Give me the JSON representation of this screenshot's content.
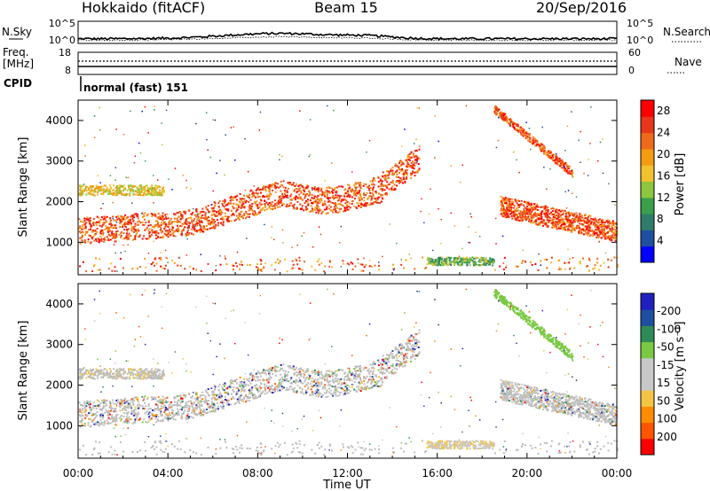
{
  "header": {
    "station": "Hokkaido (fitACF)",
    "beam": "Beam 15",
    "date": "20/Sep/2016"
  },
  "noise_panel": {
    "left_label": "N.Sky",
    "right_label": "N.Search",
    "ticks": [
      "10^5",
      "10^0"
    ]
  },
  "freq_panel": {
    "left_label_1": "Freq.",
    "left_label_2": "[MHz]",
    "left_ticks": [
      "18",
      "8"
    ],
    "right_label": "Nave",
    "right_ticks": [
      "60",
      "0"
    ]
  },
  "cpid_panel": {
    "label": "CPID",
    "mode": "normal (fast) 151"
  },
  "colors": {
    "power_scale": [
      "#0000ff",
      "#1e4fa0",
      "#2e7d6b",
      "#3a9e4a",
      "#8cc63f",
      "#f2c12e",
      "#f39c12",
      "#ee6a1a",
      "#e8361a",
      "#ff0000"
    ],
    "velocity_scale": [
      "#ff0000",
      "#ff5500",
      "#ff8c00",
      "#f4c542",
      "#c8c8c8",
      "#c8c8c8",
      "#7ac943",
      "#2e8b57",
      "#1e4fa0",
      "#2020c0"
    ],
    "ground_scatter": "#bdbdbd"
  },
  "chart_data": [
    {
      "type": "heatmap",
      "name": "power",
      "ylabel": "Slant Range [km]",
      "y_ticks": [
        "1000",
        "2000",
        "3000",
        "4000"
      ],
      "ylim": [
        200,
        4500
      ],
      "xlim_hours": [
        0,
        24
      ],
      "colorbar": {
        "label": "Power [dB]",
        "ticks": [
          "4",
          "8",
          "12",
          "16",
          "20",
          "24",
          "28"
        ],
        "range": [
          0,
          30
        ]
      },
      "echo_bands": [
        {
          "region": "main",
          "hours": [
            0,
            15.2
          ],
          "range_km_start": [
            1250,
            2700
          ],
          "color_level": 0.85
        },
        {
          "region": "upper",
          "hours": [
            0,
            3.5
          ],
          "range_km_start": [
            2300,
            2300
          ],
          "color_level": 0.6
        },
        {
          "region": "late",
          "hours": [
            18.8,
            24
          ],
          "range_km_start": [
            1900,
            1200
          ],
          "color_level": 0.85
        },
        {
          "region": "late-upper",
          "hours": [
            18.5,
            22
          ],
          "range_km_start": [
            4300,
            2700
          ],
          "color_level": 0.75
        },
        {
          "region": "near",
          "hours": [
            15.5,
            18.5
          ],
          "range_km_start": [
            500,
            500
          ],
          "color_level": 0.4
        }
      ]
    },
    {
      "type": "heatmap",
      "name": "velocity",
      "ylabel": "Slant Range [km]",
      "y_ticks": [
        "1000",
        "2000",
        "3000",
        "4000"
      ],
      "ylim": [
        200,
        4500
      ],
      "xlim_hours": [
        0,
        24
      ],
      "colorbar": {
        "label": "Velocity [m s⁻¹]",
        "ticks": [
          "200",
          "100",
          "50",
          "15",
          "-15",
          "-50",
          "-100",
          "-200"
        ],
        "range": [
          -250,
          250
        ]
      }
    }
  ],
  "x_axis": {
    "label": "Time UT",
    "ticks": [
      "00:00",
      "04:00",
      "08:00",
      "12:00",
      "16:00",
      "20:00",
      "00:00"
    ],
    "tick_hours": [
      0,
      4,
      8,
      12,
      16,
      20,
      24
    ]
  }
}
